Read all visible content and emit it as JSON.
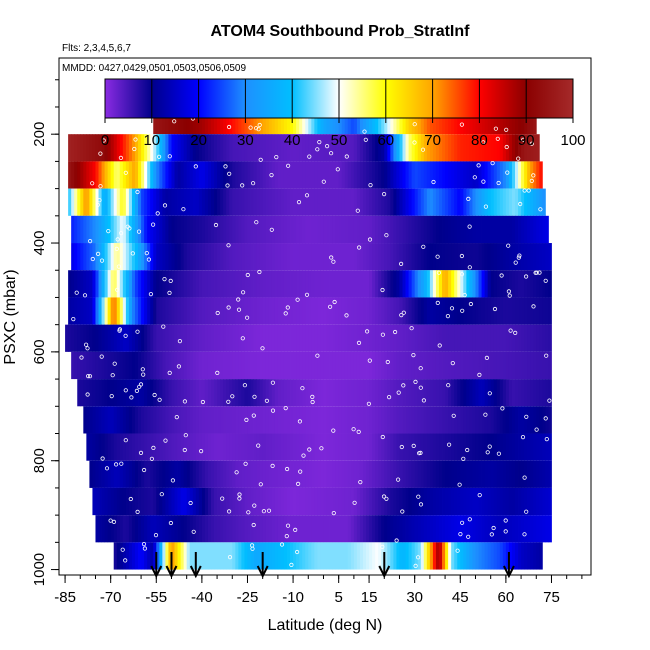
{
  "chart_data": {
    "type": "heatmap",
    "title": "ATOM4 Southbound Prob_StratInf",
    "subtitle_flights": "Flts: 2,3,4,5,6,7",
    "subtitle_dates": "MMDD: 0427,0429,0501,0503,0506,0509",
    "xlabel": "Latitude (deg N)",
    "ylabel": "PSXC (mbar)",
    "xlim": [
      -87,
      88
    ],
    "ylim": [
      1010,
      60
    ],
    "x_ticks": [
      -85,
      -70,
      -55,
      -40,
      -25,
      -10,
      5,
      15,
      30,
      45,
      60,
      75
    ],
    "y_ticks": [
      200,
      400,
      600,
      800,
      1000
    ],
    "colorbar": {
      "min": 0,
      "max": 100,
      "ticks": [
        0,
        10,
        20,
        30,
        40,
        50,
        60,
        70,
        80,
        90,
        100
      ],
      "colors": [
        "#8a2be2",
        "#00008b",
        "#0000ff",
        "#1e90ff",
        "#00bfff",
        "#ffffff",
        "#ffff00",
        "#ffa500",
        "#ff0000",
        "#8b0000",
        "#a52a2a"
      ]
    },
    "pressure_levels": [
      175,
      225,
      275,
      325,
      375,
      425,
      475,
      525,
      575,
      625,
      675,
      725,
      775,
      825,
      875,
      925,
      975
    ],
    "level_lat_ranges": [
      [
        -56,
        70
      ],
      [
        -84,
        71
      ],
      [
        -84,
        72
      ],
      [
        -84,
        73
      ],
      [
        -83,
        74
      ],
      [
        -83,
        75
      ],
      [
        -84,
        75
      ],
      [
        -84,
        75
      ],
      [
        -85,
        75
      ],
      [
        -83,
        75
      ],
      [
        -81,
        75
      ],
      [
        -79,
        75
      ],
      [
        -78,
        75
      ],
      [
        -77,
        75
      ],
      [
        -76,
        75
      ],
      [
        -75,
        75
      ],
      [
        -69,
        72
      ]
    ],
    "level_profiles": [
      [
        [
          -56,
          95
        ],
        [
          -50,
          92
        ],
        [
          -40,
          88
        ],
        [
          -25,
          75
        ],
        [
          -10,
          60
        ],
        [
          0,
          35
        ],
        [
          10,
          25
        ],
        [
          20,
          45
        ],
        [
          28,
          65
        ],
        [
          35,
          75
        ],
        [
          45,
          80
        ],
        [
          55,
          85
        ],
        [
          65,
          90
        ],
        [
          70,
          95
        ]
      ],
      [
        [
          -84,
          98
        ],
        [
          -72,
          92
        ],
        [
          -62,
          70
        ],
        [
          -55,
          45
        ],
        [
          -50,
          20
        ],
        [
          -42,
          10
        ],
        [
          -30,
          5
        ],
        [
          -10,
          3
        ],
        [
          10,
          4
        ],
        [
          20,
          12
        ],
        [
          28,
          55
        ],
        [
          34,
          70
        ],
        [
          45,
          78
        ],
        [
          58,
          80
        ],
        [
          66,
          95
        ],
        [
          71,
          97
        ]
      ],
      [
        [
          -84,
          95
        ],
        [
          -75,
          80
        ],
        [
          -68,
          55
        ],
        [
          -62,
          70
        ],
        [
          -55,
          30
        ],
        [
          -48,
          12
        ],
        [
          -40,
          18
        ],
        [
          -30,
          8
        ],
        [
          -15,
          3
        ],
        [
          5,
          3
        ],
        [
          20,
          10
        ],
        [
          30,
          25
        ],
        [
          40,
          20
        ],
        [
          50,
          15
        ],
        [
          60,
          30
        ],
        [
          68,
          70
        ],
        [
          72,
          80
        ]
      ],
      [
        [
          -84,
          40
        ],
        [
          -78,
          72
        ],
        [
          -72,
          35
        ],
        [
          -66,
          60
        ],
        [
          -60,
          25
        ],
        [
          -52,
          12
        ],
        [
          -42,
          15
        ],
        [
          -30,
          6
        ],
        [
          -10,
          3
        ],
        [
          10,
          3
        ],
        [
          22,
          8
        ],
        [
          35,
          30
        ],
        [
          45,
          20
        ],
        [
          55,
          40
        ],
        [
          63,
          45
        ],
        [
          73,
          30
        ]
      ],
      [
        [
          -83,
          22
        ],
        [
          -75,
          30
        ],
        [
          -66,
          50
        ],
        [
          -58,
          20
        ],
        [
          -50,
          10
        ],
        [
          -40,
          8
        ],
        [
          -25,
          4
        ],
        [
          -5,
          2
        ],
        [
          15,
          3
        ],
        [
          25,
          6
        ],
        [
          38,
          10
        ],
        [
          50,
          12
        ],
        [
          62,
          12
        ],
        [
          74,
          18
        ]
      ],
      [
        [
          -83,
          18
        ],
        [
          -75,
          28
        ],
        [
          -68,
          55
        ],
        [
          -62,
          40
        ],
        [
          -55,
          15
        ],
        [
          -45,
          8
        ],
        [
          -30,
          4
        ],
        [
          -10,
          2
        ],
        [
          10,
          2
        ],
        [
          22,
          5
        ],
        [
          35,
          10
        ],
        [
          50,
          9
        ],
        [
          62,
          12
        ],
        [
          75,
          15
        ]
      ],
      [
        [
          -84,
          10
        ],
        [
          -76,
          15
        ],
        [
          -69,
          58
        ],
        [
          -62,
          25
        ],
        [
          -55,
          10
        ],
        [
          -40,
          5
        ],
        [
          -20,
          3
        ],
        [
          0,
          2
        ],
        [
          15,
          2
        ],
        [
          25,
          12
        ],
        [
          34,
          38
        ],
        [
          40,
          70
        ],
        [
          45,
          50
        ],
        [
          55,
          10
        ],
        [
          65,
          8
        ],
        [
          75,
          10
        ]
      ],
      [
        [
          -84,
          12
        ],
        [
          -76,
          15
        ],
        [
          -69,
          75
        ],
        [
          -63,
          30
        ],
        [
          -55,
          8
        ],
        [
          -40,
          4
        ],
        [
          -20,
          2
        ],
        [
          0,
          1
        ],
        [
          15,
          2
        ],
        [
          25,
          5
        ],
        [
          35,
          12
        ],
        [
          45,
          10
        ],
        [
          60,
          8
        ],
        [
          75,
          9
        ]
      ],
      [
        [
          -85,
          8
        ],
        [
          -75,
          10
        ],
        [
          -65,
          15
        ],
        [
          -55,
          6
        ],
        [
          -40,
          3
        ],
        [
          -20,
          1
        ],
        [
          0,
          1
        ],
        [
          15,
          2
        ],
        [
          25,
          3
        ],
        [
          40,
          5
        ],
        [
          60,
          5
        ],
        [
          75,
          7
        ]
      ],
      [
        [
          -83,
          6
        ],
        [
          -72,
          8
        ],
        [
          -62,
          10
        ],
        [
          -52,
          5
        ],
        [
          -40,
          2
        ],
        [
          -20,
          1
        ],
        [
          0,
          1
        ],
        [
          15,
          1
        ],
        [
          25,
          3
        ],
        [
          40,
          4
        ],
        [
          60,
          5
        ],
        [
          75,
          6
        ]
      ],
      [
        [
          -81,
          8
        ],
        [
          -70,
          10
        ],
        [
          -60,
          12
        ],
        [
          -50,
          6
        ],
        [
          -40,
          3
        ],
        [
          -25,
          8
        ],
        [
          -15,
          3
        ],
        [
          0,
          1
        ],
        [
          15,
          2
        ],
        [
          25,
          4
        ],
        [
          40,
          6
        ],
        [
          52,
          14
        ],
        [
          62,
          6
        ],
        [
          75,
          8
        ]
      ],
      [
        [
          -79,
          10
        ],
        [
          -70,
          14
        ],
        [
          -60,
          8
        ],
        [
          -50,
          5
        ],
        [
          -40,
          3
        ],
        [
          -20,
          2
        ],
        [
          0,
          1
        ],
        [
          15,
          2
        ],
        [
          25,
          4
        ],
        [
          40,
          6
        ],
        [
          55,
          8
        ],
        [
          65,
          12
        ],
        [
          75,
          9
        ]
      ],
      [
        [
          -78,
          12
        ],
        [
          -68,
          8
        ],
        [
          -58,
          6
        ],
        [
          -48,
          4
        ],
        [
          -35,
          2
        ],
        [
          -20,
          3
        ],
        [
          0,
          1
        ],
        [
          15,
          2
        ],
        [
          25,
          6
        ],
        [
          40,
          8
        ],
        [
          55,
          10
        ],
        [
          65,
          12
        ],
        [
          75,
          14
        ]
      ],
      [
        [
          -77,
          10
        ],
        [
          -68,
          14
        ],
        [
          -58,
          8
        ],
        [
          -48,
          12
        ],
        [
          -38,
          6
        ],
        [
          -28,
          3
        ],
        [
          -15,
          2
        ],
        [
          0,
          1
        ],
        [
          12,
          2
        ],
        [
          25,
          6
        ],
        [
          40,
          10
        ],
        [
          55,
          12
        ],
        [
          65,
          10
        ],
        [
          75,
          13
        ]
      ],
      [
        [
          -76,
          14
        ],
        [
          -66,
          10
        ],
        [
          -56,
          8
        ],
        [
          -46,
          18
        ],
        [
          -36,
          6
        ],
        [
          -25,
          3
        ],
        [
          -10,
          1
        ],
        [
          10,
          2
        ],
        [
          22,
          8
        ],
        [
          35,
          12
        ],
        [
          50,
          15
        ],
        [
          62,
          12
        ],
        [
          75,
          16
        ]
      ],
      [
        [
          -75,
          12
        ],
        [
          -65,
          8
        ],
        [
          -56,
          14
        ],
        [
          -46,
          10
        ],
        [
          -36,
          6
        ],
        [
          -26,
          4
        ],
        [
          -10,
          2
        ],
        [
          8,
          2
        ],
        [
          20,
          10
        ],
        [
          32,
          14
        ],
        [
          45,
          18
        ],
        [
          58,
          14
        ],
        [
          75,
          18
        ]
      ],
      [
        [
          -69,
          8
        ],
        [
          -60,
          20
        ],
        [
          -56,
          12
        ],
        [
          -50,
          72
        ],
        [
          -44,
          45
        ],
        [
          -38,
          45
        ],
        [
          -30,
          45
        ],
        [
          -22,
          35
        ],
        [
          -12,
          40
        ],
        [
          -2,
          45
        ],
        [
          8,
          45
        ],
        [
          18,
          50
        ],
        [
          26,
          38
        ],
        [
          32,
          45
        ],
        [
          38,
          90
        ],
        [
          42,
          45
        ],
        [
          50,
          30
        ],
        [
          58,
          25
        ],
        [
          65,
          15
        ],
        [
          72,
          12
        ]
      ]
    ],
    "arrow_latitudes": [
      -55,
      -50,
      -42,
      -20,
      20,
      61
    ],
    "point_seed": 97,
    "point_count": 340
  }
}
